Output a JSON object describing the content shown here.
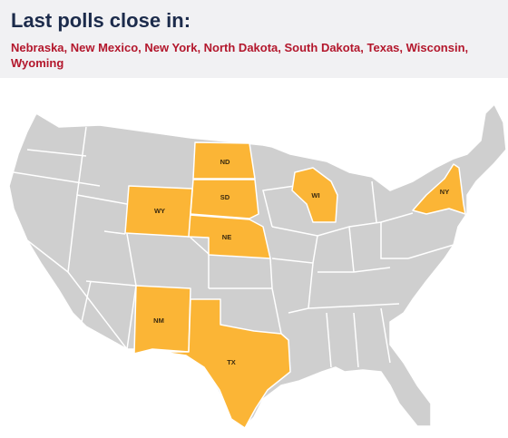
{
  "header": {
    "title": "Last polls close in:",
    "states": "Nebraska, New Mexico, New York, North Dakota, South Dakota, Texas, Wisconsin, Wyoming"
  },
  "map": {
    "labels": [
      "ND",
      "SD",
      "NE",
      "WY",
      "WI",
      "NY",
      "NM",
      "TX"
    ]
  }
}
